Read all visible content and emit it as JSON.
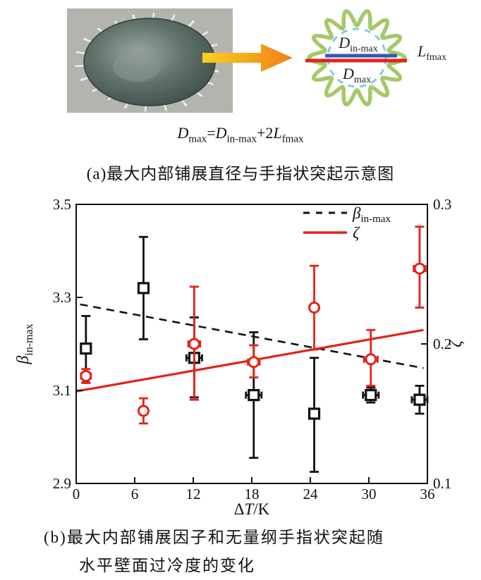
{
  "panel_a": {
    "photo_name": "frozen-droplet-photo",
    "schematic": {
      "labels": {
        "inner": {
          "main": "D",
          "sub": "in-max"
        },
        "outer": {
          "main": "D",
          "sub": "max"
        },
        "finger": {
          "main": "L",
          "sub": "fmax"
        }
      },
      "colors": {
        "gear": "#a6c86a",
        "dashed_circle": "#7fcbe8",
        "inner_line": "#3a55b4",
        "outer_line": "#e2231a"
      }
    },
    "arrow_colors": {
      "start": "#f9d01c",
      "end": "#ef7f1a"
    },
    "equation": {
      "d1": "D",
      "d1_sub": "max",
      "eq": "=",
      "d2": "D",
      "d2_sub": "in-max",
      "plus": "+2",
      "l": "L",
      "l_sub": "fmax"
    },
    "caption": "(a)最大内部铺展直径与手指状突起示意图"
  },
  "panel_b": {
    "caption_line1": "(b)最大内部铺展因子和无量纲手指状突起随",
    "caption_line2": "水平壁面过冷度的变化"
  },
  "chart_data": {
    "type": "scatter",
    "xlabel": {
      "pre": "Δ",
      "it": "T",
      "post": "/K"
    },
    "ylabel_left": {
      "main": "β",
      "sub": "in-max"
    },
    "ylabel_right": {
      "main": "ζ",
      "sub": ""
    },
    "xlim": [
      0,
      36
    ],
    "ylim_left": [
      2.9,
      3.5
    ],
    "ylim_right": [
      0.1,
      0.3
    ],
    "xticks": [
      0,
      6,
      12,
      18,
      24,
      30,
      36
    ],
    "yticks_left": [
      2.9,
      3.1,
      3.3,
      3.5
    ],
    "yticks_right": [
      0.1,
      0.2,
      0.3
    ],
    "grid": false,
    "legend_position": "upper right",
    "colors": {
      "black": "#111111",
      "red": "#e2231a"
    },
    "legend": [
      {
        "main": "β",
        "sub": "in-max",
        "style": "dashed",
        "color": "#111111"
      },
      {
        "main": "ζ",
        "sub": "",
        "style": "solid",
        "color": "#e2231a"
      }
    ],
    "series": [
      {
        "name": "beta_in_max",
        "axis": "left",
        "marker": "square",
        "color": "#111111",
        "points": [
          {
            "x": 1.0,
            "y": 3.19,
            "yerr_lo": 0.073,
            "yerr_hi": 0.07,
            "xerr": 0.4
          },
          {
            "x": 6.9,
            "y": 3.32,
            "yerr_lo": 0.11,
            "yerr_hi": 0.11,
            "xerr": 0.4
          },
          {
            "x": 12.1,
            "y": 3.17,
            "yerr_lo": 0.085,
            "yerr_hi": 0.087,
            "xerr": 0.8
          },
          {
            "x": 18.2,
            "y": 3.09,
            "yerr_lo": 0.135,
            "yerr_hi": 0.135,
            "xerr": 0.8
          },
          {
            "x": 24.4,
            "y": 3.05,
            "yerr_lo": 0.125,
            "yerr_hi": 0.12,
            "xerr": 0.4
          },
          {
            "x": 30.2,
            "y": 3.09,
            "yerr_lo": 0.016,
            "yerr_hi": 0.016,
            "xerr": 0.8
          },
          {
            "x": 35.2,
            "y": 3.08,
            "yerr_lo": 0.03,
            "yerr_hi": 0.03,
            "xerr": 0.8
          }
        ],
        "fit_line": {
          "style": "dashed",
          "x": [
            0.4,
            35.6
          ],
          "y": [
            3.285,
            3.148
          ]
        }
      },
      {
        "name": "zeta",
        "axis": "right",
        "marker": "circle",
        "color": "#e2231a",
        "points": [
          {
            "x": 1.0,
            "y": 0.177,
            "yerr_lo": 0.005,
            "yerr_hi": 0.005,
            "xerr": 0.5
          },
          {
            "x": 6.9,
            "y": 0.152,
            "yerr_lo": 0.009,
            "yerr_hi": 0.009,
            "xerr": 0.4
          },
          {
            "x": 12.1,
            "y": 0.2,
            "yerr_lo": 0.04,
            "yerr_hi": 0.041,
            "xerr": 0.6
          },
          {
            "x": 18.2,
            "y": 0.187,
            "yerr_lo": 0.011,
            "yerr_hi": 0.012,
            "xerr": 0.6
          },
          {
            "x": 24.4,
            "y": 0.226,
            "yerr_lo": 0.03,
            "yerr_hi": 0.03,
            "xerr": 0.3
          },
          {
            "x": 30.2,
            "y": 0.189,
            "yerr_lo": 0.019,
            "yerr_hi": 0.021,
            "xerr": 0.7
          },
          {
            "x": 35.2,
            "y": 0.254,
            "yerr_lo": 0.028,
            "yerr_hi": 0.03,
            "xerr": 0.6
          }
        ],
        "fit_line": {
          "style": "solid",
          "x": [
            0.0,
            35.6
          ],
          "y": [
            0.166,
            0.21
          ]
        }
      }
    ]
  }
}
